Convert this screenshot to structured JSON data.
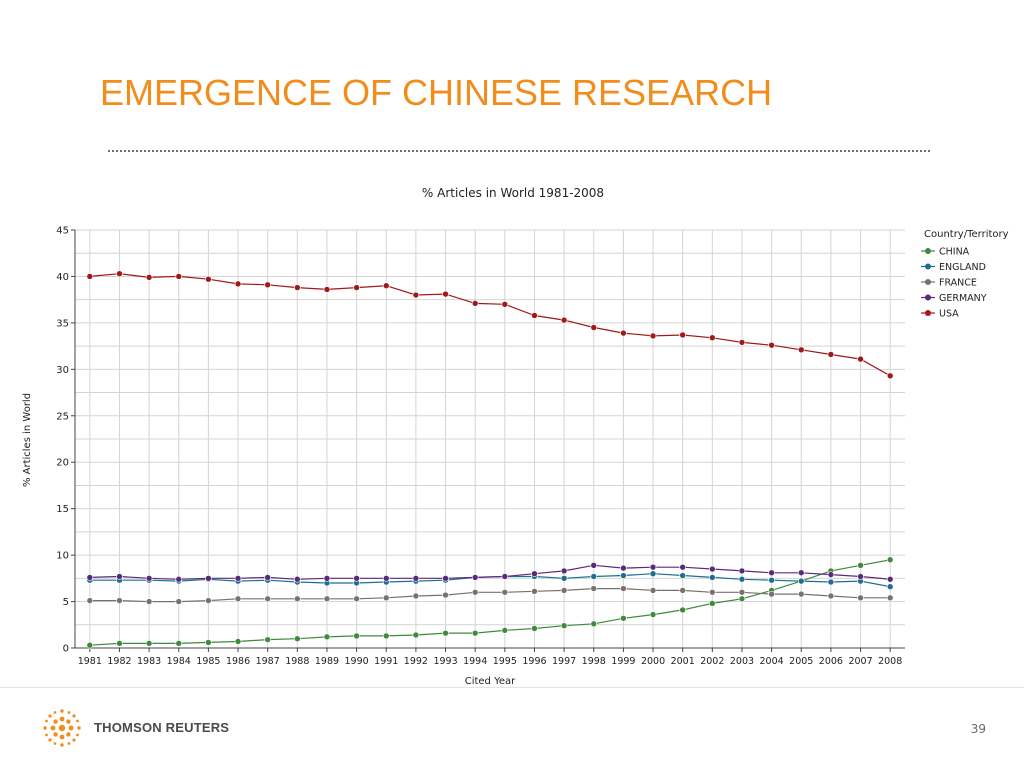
{
  "slide": {
    "title": "EMERGENCE OF CHINESE RESEARCH",
    "page_number": "39",
    "logo_text": "THOMSON REUTERS"
  },
  "colors": {
    "title": "#f28c1b"
  },
  "chart_data": {
    "type": "line",
    "title": "% Articles in World 1981-2008",
    "xlabel": "Cited Year",
    "ylabel": "% Articles in World",
    "ylim": [
      0,
      45
    ],
    "yticks": [
      0,
      5,
      10,
      15,
      20,
      25,
      30,
      35,
      40,
      45
    ],
    "grid": true,
    "legend_title": "Country/Territory",
    "legend_position": "right",
    "x": [
      "1981",
      "1982",
      "1983",
      "1984",
      "1985",
      "1986",
      "1987",
      "1988",
      "1989",
      "1990",
      "1991",
      "1992",
      "1993",
      "1994",
      "1995",
      "1996",
      "1997",
      "1998",
      "1999",
      "2000",
      "2001",
      "2002",
      "2003",
      "2004",
      "2005",
      "2006",
      "2007",
      "2008"
    ],
    "series": [
      {
        "name": "CHINA",
        "color": "#3f8a3c",
        "values": [
          0.3,
          0.5,
          0.5,
          0.5,
          0.6,
          0.7,
          0.9,
          1.0,
          1.2,
          1.3,
          1.3,
          1.4,
          1.6,
          1.6,
          1.9,
          2.1,
          2.4,
          2.6,
          3.2,
          3.6,
          4.1,
          4.8,
          5.3,
          6.2,
          7.2,
          8.3,
          8.9,
          9.5
        ]
      },
      {
        "name": "ENGLAND",
        "color": "#1d6f8f",
        "values": [
          7.3,
          7.3,
          7.3,
          7.2,
          7.4,
          7.2,
          7.3,
          7.1,
          7.0,
          7.0,
          7.1,
          7.2,
          7.3,
          7.6,
          7.7,
          7.7,
          7.5,
          7.7,
          7.8,
          8.0,
          7.8,
          7.6,
          7.4,
          7.3,
          7.2,
          7.1,
          7.2,
          6.6
        ]
      },
      {
        "name": "FRANCE",
        "color": "#7a716b",
        "values": [
          5.1,
          5.1,
          5.0,
          5.0,
          5.1,
          5.3,
          5.3,
          5.3,
          5.3,
          5.3,
          5.4,
          5.6,
          5.7,
          6.0,
          6.0,
          6.1,
          6.2,
          6.4,
          6.4,
          6.2,
          6.2,
          6.0,
          6.0,
          5.8,
          5.8,
          5.6,
          5.4,
          5.4
        ]
      },
      {
        "name": "GERMANY",
        "color": "#5a2a7a",
        "values": [
          7.6,
          7.7,
          7.5,
          7.4,
          7.5,
          7.5,
          7.6,
          7.4,
          7.5,
          7.5,
          7.5,
          7.5,
          7.5,
          7.6,
          7.7,
          8.0,
          8.3,
          8.9,
          8.6,
          8.7,
          8.7,
          8.5,
          8.3,
          8.1,
          8.1,
          7.9,
          7.7,
          7.4
        ]
      },
      {
        "name": "USA",
        "color": "#a01818",
        "values": [
          40.0,
          40.3,
          39.9,
          40.0,
          39.7,
          39.2,
          39.1,
          38.8,
          38.6,
          38.8,
          39.0,
          38.0,
          38.1,
          37.1,
          37.0,
          35.8,
          35.3,
          34.5,
          33.9,
          33.6,
          33.7,
          33.4,
          32.9,
          32.6,
          32.1,
          31.6,
          31.1,
          29.3
        ]
      }
    ]
  }
}
